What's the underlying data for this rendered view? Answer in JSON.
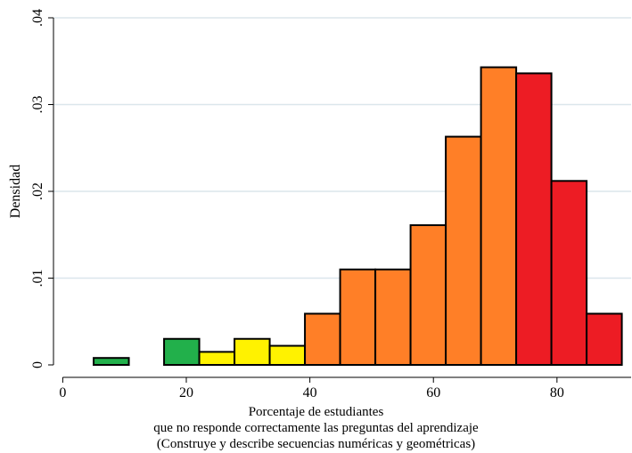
{
  "chart_data": {
    "type": "bar",
    "xlabel_lines": [
      "Porcentaje de estudiantes",
      "que no responde correctamente las preguntas del aprendizaje",
      "(Construye y describe secuencias numéricas y geométricas)"
    ],
    "ylabel": "Densidad",
    "xlim": [
      -1.5,
      92
    ],
    "ylim": [
      0,
      0.04
    ],
    "x_ticks": [
      0,
      20,
      40,
      60,
      80
    ],
    "x_tick_labels": [
      "0",
      "20",
      "40",
      "60",
      "80"
    ],
    "y_ticks": [
      0,
      0.01,
      0.02,
      0.03,
      0.04
    ],
    "y_tick_labels": [
      "0",
      ".01",
      ".02",
      ".03",
      ".04"
    ],
    "grid": true,
    "colors": {
      "green": "#22b04b",
      "yellow": "#fff200",
      "orange": "#ff7f27",
      "red": "#ed1c24",
      "grid": "#dbe6ec"
    },
    "bins": [
      {
        "x0": 5.0,
        "x1": 10.7,
        "value": 0.0008,
        "color": "green"
      },
      {
        "x0": 16.4,
        "x1": 22.1,
        "value": 0.003,
        "color": "green"
      },
      {
        "x0": 22.1,
        "x1": 27.8,
        "value": 0.0015,
        "color": "yellow"
      },
      {
        "x0": 27.8,
        "x1": 33.5,
        "value": 0.003,
        "color": "yellow"
      },
      {
        "x0": 33.5,
        "x1": 39.2,
        "value": 0.0022,
        "color": "yellow"
      },
      {
        "x0": 39.2,
        "x1": 44.9,
        "value": 0.0059,
        "color": "orange"
      },
      {
        "x0": 44.9,
        "x1": 50.6,
        "value": 0.011,
        "color": "orange"
      },
      {
        "x0": 50.6,
        "x1": 56.3,
        "value": 0.011,
        "color": "orange"
      },
      {
        "x0": 56.3,
        "x1": 62.0,
        "value": 0.0161,
        "color": "orange"
      },
      {
        "x0": 62.0,
        "x1": 67.7,
        "value": 0.0263,
        "color": "orange"
      },
      {
        "x0": 67.7,
        "x1": 73.4,
        "value": 0.0343,
        "color": "orange"
      },
      {
        "x0": 73.4,
        "x1": 79.1,
        "value": 0.0336,
        "color": "red"
      },
      {
        "x0": 79.1,
        "x1": 84.8,
        "value": 0.0212,
        "color": "red"
      },
      {
        "x0": 84.8,
        "x1": 90.5,
        "value": 0.0059,
        "color": "red"
      }
    ]
  }
}
